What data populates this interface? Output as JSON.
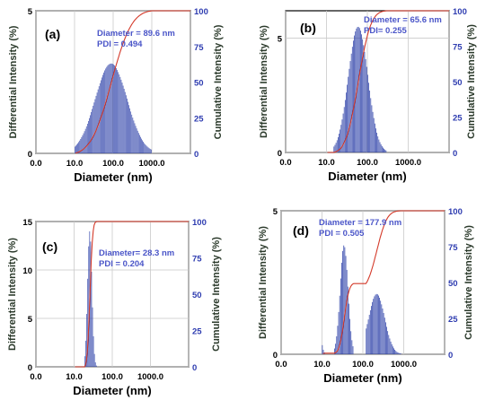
{
  "chart_data": [
    {
      "id": "a",
      "type": "bar",
      "panel_label": "(a)",
      "annotation": {
        "diameter": "Diameter = 89.6 nm",
        "pdi": "PDI = 0.494"
      },
      "xlabel": "Diameter (nm)",
      "ylabel": "Differential Intensity (%)",
      "ylabel_right": "Cumulative Intensity (%)",
      "x_scale": "log",
      "x_tick_labels": [
        "0.0",
        "10.0",
        "100.0",
        "1000.0"
      ],
      "y_ticks": [
        "0",
        "5"
      ],
      "ylim": [
        0,
        5
      ],
      "y2_ticks": [
        "0",
        "25",
        "50",
        "75",
        "100"
      ],
      "ylim_right": [
        0,
        100
      ],
      "grid": true,
      "histogram": {
        "x_start": 6,
        "x_end": 1000,
        "bins": 46,
        "peak": 89.6,
        "peak_height": 3.15,
        "shape": "lognormal",
        "sigma": 0.95
      },
      "cumulative_color": "#d43a2a",
      "bar_color": "#2b3fa8"
    },
    {
      "id": "b",
      "type": "bar",
      "panel_label": "(b)",
      "annotation": {
        "diameter": "Diameter = 65.6 nm",
        "pdi": "PDI= 0.255"
      },
      "xlabel": "Diameter (nm)",
      "ylabel": "Differential Intensity (%)",
      "ylabel_right": "Cumulative Intensity (%)",
      "x_scale": "log",
      "x_tick_labels": [
        "0.0",
        "10.0",
        "100.0",
        "1000.0"
      ],
      "y_ticks": [
        "0",
        "5"
      ],
      "ylim": [
        0,
        6.2
      ],
      "y2_ticks": [
        "0",
        "25",
        "50",
        "75",
        "100"
      ],
      "ylim_right": [
        0,
        100
      ],
      "grid": true,
      "histogram": {
        "x_start": 15,
        "x_end": 300,
        "bins": 34,
        "peak": 60,
        "peak_height": 5.5,
        "shape": "lognormal",
        "sigma": 0.55
      },
      "cumulative_color": "#d43a2a",
      "bar_color": "#2b3fa8"
    },
    {
      "id": "c",
      "type": "bar",
      "panel_label": "(c)",
      "annotation": {
        "diameter": "Diameter= 28.3 nm",
        "pdi": "PDI = 0.204"
      },
      "xlabel": "Diameter (nm)",
      "ylabel": "Differential Intensity (%)",
      "ylabel_right": "Cumulative Intensity (%)",
      "x_scale": "log",
      "x_tick_labels": [
        "0.0",
        "10.0",
        "100.0",
        "1000.0"
      ],
      "y_ticks": [
        "0",
        "5",
        "10",
        "15"
      ],
      "ylim": [
        0,
        15
      ],
      "y2_ticks": [
        "0",
        "25",
        "50",
        "75",
        "100"
      ],
      "ylim_right": [
        0,
        100
      ],
      "grid": true,
      "histogram": {
        "x_start": 19,
        "x_end": 40,
        "bins": 10,
        "peak": 26,
        "peak_height": 14,
        "shape": "lognormal",
        "sigma": 0.13
      },
      "cumulative_color": "#d43a2a",
      "bar_color": "#2b3fa8"
    },
    {
      "id": "d",
      "type": "bar",
      "panel_label": "(d)",
      "annotation": {
        "diameter": "Diameter = 177.9 nm",
        "pdi": "PDI = 0.505"
      },
      "xlabel": "Diameter (nm)",
      "ylabel": "Differential Intensity (%)",
      "ylabel_right": "Cumulative Intensity (%)",
      "x_scale": "log",
      "x_tick_labels": [
        "0.0",
        "10.0",
        "100.0",
        "1000.0"
      ],
      "y_ticks": [
        "0",
        "5"
      ],
      "ylim": [
        0,
        5
      ],
      "y2_ticks": [
        "0",
        "25",
        "50",
        "75",
        "100"
      ],
      "ylim_right": [
        0,
        100
      ],
      "grid": true,
      "histogram_modes": [
        {
          "x_start": 6,
          "x_end": 12,
          "peak": 8,
          "peak_height": 1.3,
          "sigma": 0.15
        },
        {
          "x_start": 20,
          "x_end": 60,
          "peak": 35,
          "peak_height": 3.8,
          "sigma": 0.22
        },
        {
          "x_start": 120,
          "x_end": 900,
          "peak": 220,
          "peak_height": 2.1,
          "sigma": 0.45
        }
      ],
      "bins": 50,
      "cumulative_color": "#d43a2a",
      "bar_color": "#2b3fa8"
    }
  ]
}
